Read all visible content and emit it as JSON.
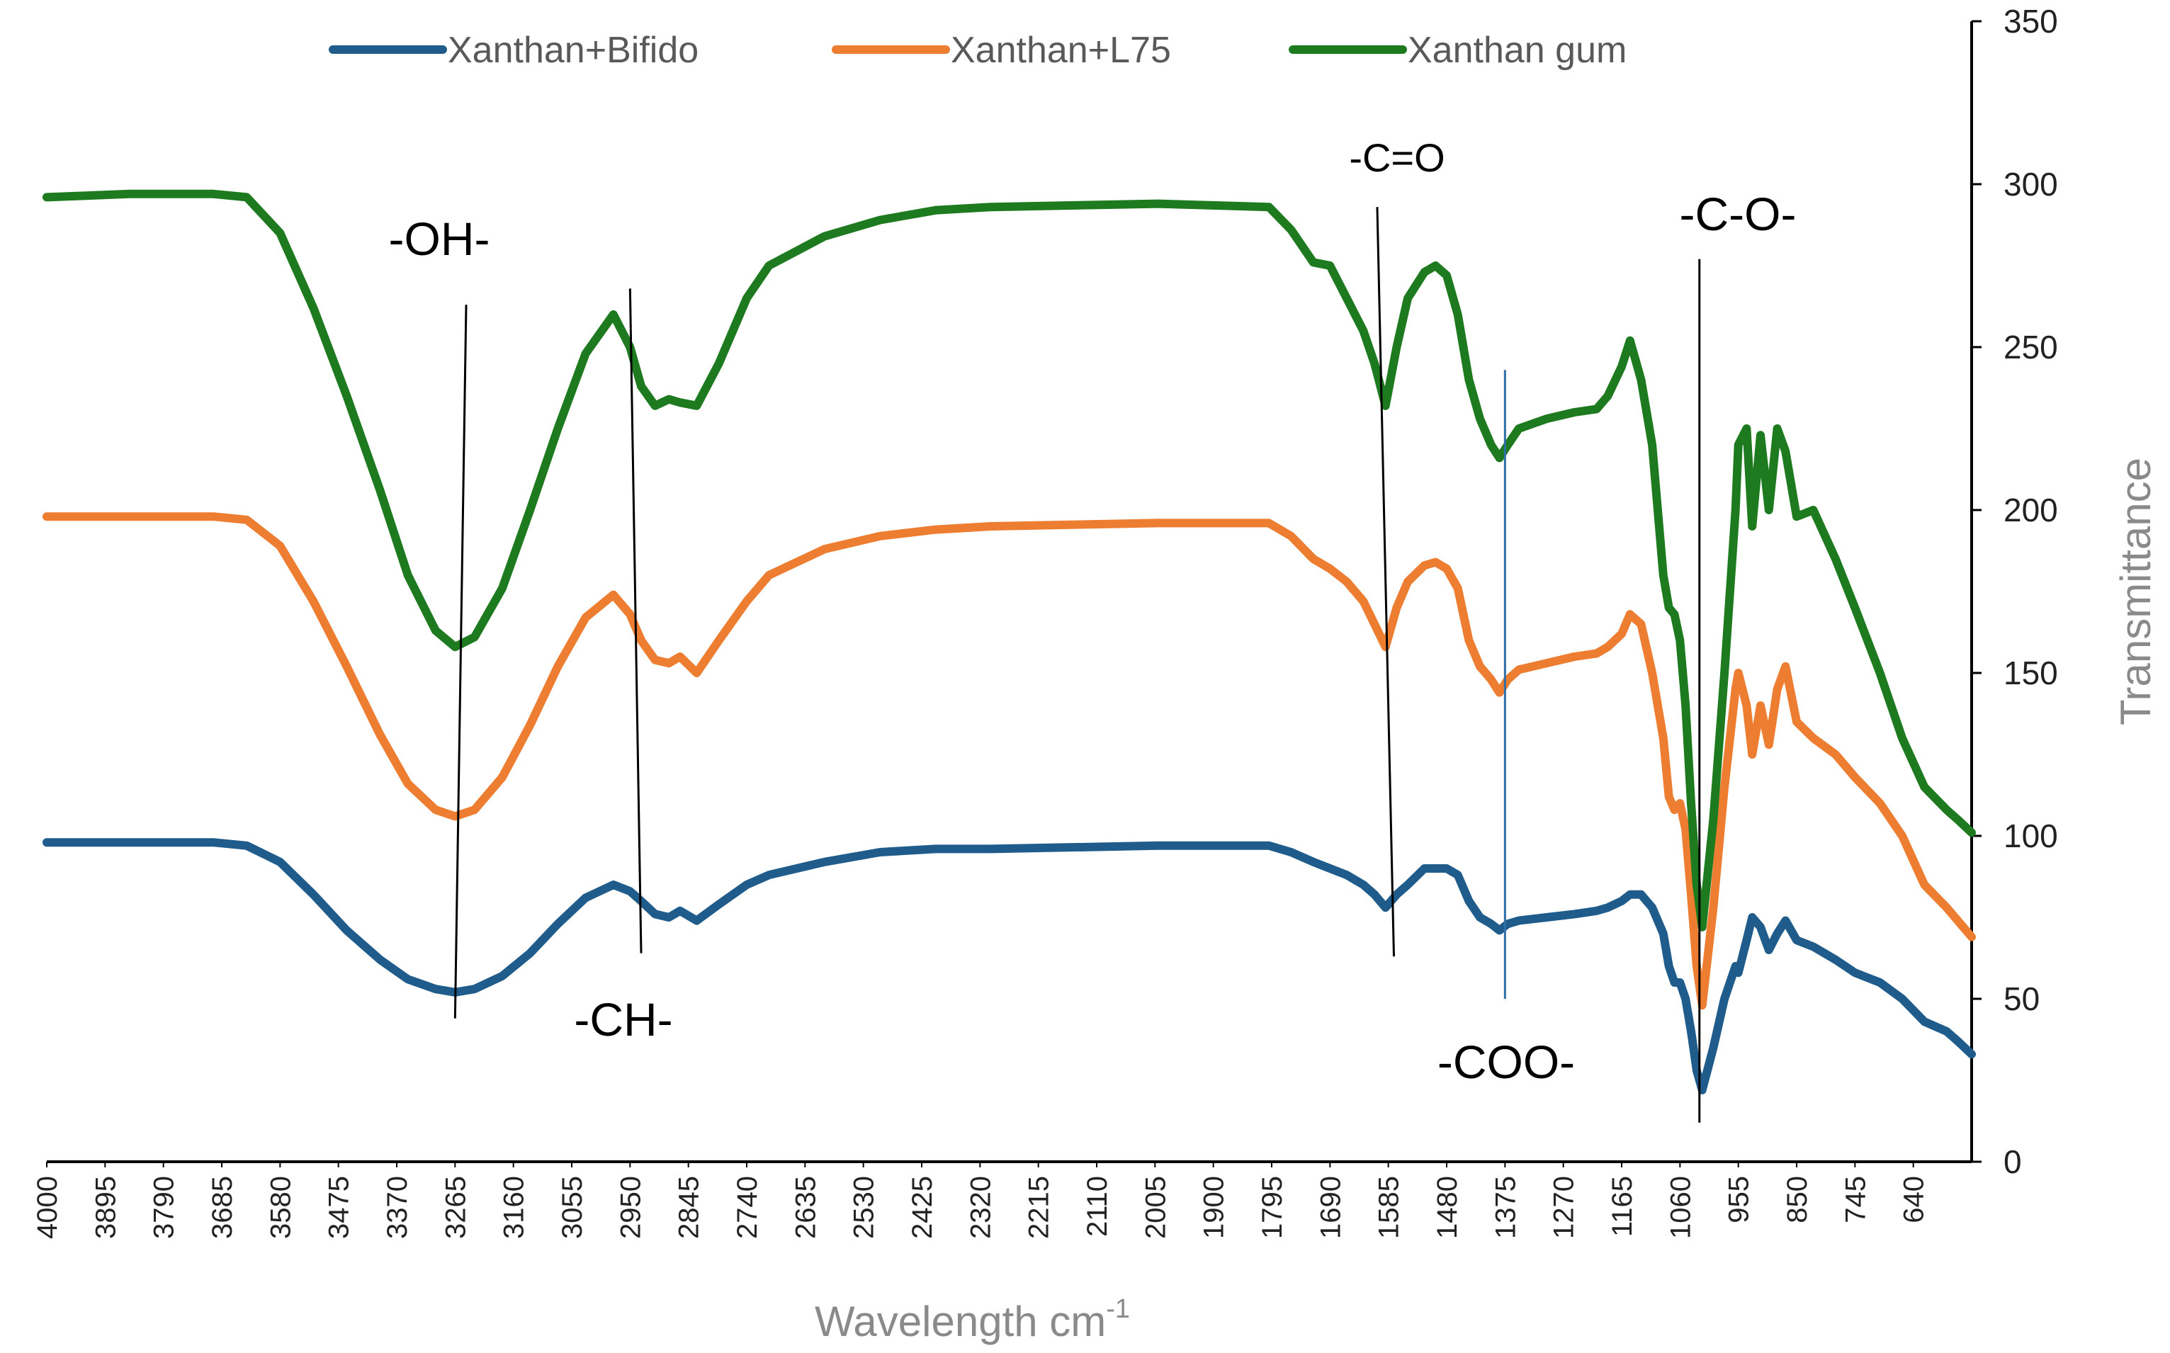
{
  "chart_data": {
    "type": "line",
    "xlabel": "Wavelength cm",
    "xlabel_superscript": "-1",
    "ylabel": "Transmittance",
    "xlim": [
      4000,
      535
    ],
    "ylim": [
      0,
      350
    ],
    "y_axis_side": "right",
    "x_axis_reversed": true,
    "grid": false,
    "legend_position": "top",
    "x_ticks": [
      "4000",
      "3895",
      "3790",
      "3685",
      "3580",
      "3475",
      "3370",
      "3265",
      "3160",
      "3055",
      "2950",
      "2845",
      "2740",
      "2635",
      "2530",
      "2425",
      "2320",
      "2215",
      "2110",
      "2005",
      "1900",
      "1795",
      "1690",
      "1585",
      "1480",
      "1375",
      "1270",
      "1165",
      "1060",
      "955",
      "850",
      "745",
      "640"
    ],
    "y_ticks": [
      "0",
      "50",
      "100",
      "150",
      "200",
      "250",
      "300",
      "350"
    ],
    "series": [
      {
        "name": "Xanthan+Bifido",
        "color": "#1f5c8b",
        "x": [
          4000,
          3850,
          3700,
          3640,
          3580,
          3520,
          3460,
          3400,
          3350,
          3300,
          3265,
          3230,
          3180,
          3130,
          3080,
          3030,
          2980,
          2950,
          2930,
          2905,
          2880,
          2860,
          2830,
          2790,
          2740,
          2700,
          2600,
          2500,
          2400,
          2300,
          2000,
          1800,
          1760,
          1720,
          1690,
          1660,
          1630,
          1610,
          1590,
          1570,
          1550,
          1520,
          1500,
          1480,
          1460,
          1440,
          1420,
          1400,
          1385,
          1370,
          1350,
          1300,
          1250,
          1210,
          1190,
          1165,
          1150,
          1130,
          1110,
          1090,
          1080,
          1070,
          1060,
          1050,
          1040,
          1030,
          1020,
          1000,
          980,
          960,
          955,
          940,
          930,
          915,
          900,
          885,
          870,
          850,
          820,
          780,
          745,
          700,
          660,
          620,
          580,
          560,
          535
        ],
        "y": [
          98,
          98,
          98,
          97,
          92,
          82,
          71,
          62,
          56,
          53,
          52,
          53,
          57,
          64,
          73,
          81,
          85,
          83,
          80,
          76,
          75,
          77,
          74,
          79,
          85,
          88,
          92,
          95,
          96,
          96,
          97,
          97,
          95,
          92,
          90,
          88,
          85,
          82,
          78,
          82,
          85,
          90,
          90,
          90,
          88,
          80,
          75,
          73,
          71,
          73,
          74,
          75,
          76,
          77,
          78,
          80,
          82,
          82,
          78,
          70,
          60,
          55,
          55,
          50,
          40,
          28,
          22,
          35,
          50,
          60,
          58,
          68,
          75,
          72,
          65,
          70,
          74,
          68,
          66,
          62,
          58,
          55,
          50,
          43,
          40,
          37,
          33
        ]
      },
      {
        "name": "Xanthan+L75",
        "color": "#ed7d31",
        "x": [
          4000,
          3850,
          3700,
          3640,
          3580,
          3520,
          3460,
          3400,
          3350,
          3300,
          3265,
          3230,
          3180,
          3130,
          3080,
          3030,
          2980,
          2950,
          2930,
          2905,
          2880,
          2860,
          2830,
          2790,
          2740,
          2700,
          2600,
          2500,
          2400,
          2300,
          2000,
          1800,
          1760,
          1720,
          1690,
          1660,
          1630,
          1610,
          1590,
          1570,
          1550,
          1520,
          1500,
          1480,
          1460,
          1440,
          1420,
          1400,
          1385,
          1370,
          1350,
          1300,
          1250,
          1210,
          1190,
          1165,
          1150,
          1130,
          1110,
          1090,
          1080,
          1070,
          1060,
          1050,
          1040,
          1030,
          1020,
          1000,
          980,
          960,
          955,
          940,
          930,
          915,
          900,
          885,
          870,
          850,
          820,
          780,
          745,
          700,
          660,
          620,
          580,
          560,
          535
        ],
        "y": [
          198,
          198,
          198,
          197,
          189,
          172,
          152,
          131,
          116,
          108,
          106,
          108,
          118,
          134,
          152,
          167,
          174,
          168,
          160,
          154,
          153,
          155,
          150,
          160,
          172,
          180,
          188,
          192,
          194,
          195,
          196,
          196,
          192,
          185,
          182,
          178,
          172,
          165,
          158,
          170,
          178,
          183,
          184,
          182,
          176,
          160,
          152,
          148,
          144,
          148,
          151,
          153,
          155,
          156,
          158,
          162,
          168,
          165,
          150,
          130,
          112,
          108,
          110,
          102,
          82,
          60,
          48,
          78,
          115,
          145,
          150,
          140,
          125,
          140,
          128,
          145,
          152,
          135,
          130,
          125,
          118,
          110,
          100,
          85,
          78,
          74,
          69
        ]
      },
      {
        "name": "Xanthan gum",
        "color": "#1e7a1e",
        "x": [
          4000,
          3850,
          3700,
          3640,
          3580,
          3520,
          3460,
          3400,
          3350,
          3300,
          3265,
          3230,
          3180,
          3130,
          3080,
          3030,
          2980,
          2950,
          2930,
          2905,
          2880,
          2860,
          2830,
          2790,
          2740,
          2700,
          2600,
          2500,
          2400,
          2300,
          2000,
          1800,
          1760,
          1720,
          1690,
          1660,
          1630,
          1610,
          1590,
          1570,
          1550,
          1520,
          1500,
          1480,
          1460,
          1440,
          1420,
          1400,
          1385,
          1370,
          1350,
          1300,
          1250,
          1210,
          1190,
          1165,
          1150,
          1130,
          1110,
          1090,
          1080,
          1070,
          1060,
          1050,
          1040,
          1030,
          1020,
          1000,
          980,
          960,
          955,
          940,
          930,
          915,
          900,
          885,
          870,
          850,
          820,
          780,
          745,
          700,
          660,
          620,
          580,
          560,
          535
        ],
        "y": [
          296,
          297,
          297,
          296,
          285,
          262,
          235,
          206,
          180,
          163,
          158,
          161,
          176,
          200,
          225,
          248,
          260,
          250,
          238,
          232,
          234,
          233,
          232,
          245,
          265,
          275,
          284,
          289,
          292,
          293,
          294,
          293,
          286,
          276,
          275,
          265,
          255,
          245,
          232,
          250,
          265,
          273,
          275,
          272,
          260,
          240,
          228,
          220,
          216,
          220,
          225,
          228,
          230,
          231,
          235,
          244,
          252,
          240,
          220,
          180,
          170,
          168,
          160,
          140,
          110,
          85,
          72,
          105,
          150,
          200,
          220,
          225,
          195,
          223,
          200,
          225,
          218,
          198,
          200,
          185,
          170,
          150,
          130,
          115,
          108,
          105,
          101
        ]
      }
    ],
    "annotations": {
      "oh": "-OH-",
      "ch": "-CH-",
      "co_double": "-C=O",
      "coo": "-COO-",
      "co_single": "-C-O-"
    },
    "annotation_lines": [
      {
        "label": "-OH-",
        "x_top": 3245,
        "y_top": 263,
        "x_bottom": 3265,
        "y_bottom": 44
      },
      {
        "label": "-CH-",
        "x_top": 2950,
        "y_top": 268,
        "x_bottom": 2930,
        "y_bottom": 64
      },
      {
        "label": "-C=O",
        "x_top": 1605,
        "y_top": 293,
        "x_bottom": 1575,
        "y_bottom": 63
      },
      {
        "label": "-COO-",
        "x_top": 1375,
        "y_top": 243,
        "x_bottom": 1375,
        "y_bottom": 50
      },
      {
        "label": "-C-O-",
        "x_top": 1025,
        "y_top": 277,
        "x_bottom": 1025,
        "y_bottom": 12
      }
    ]
  }
}
